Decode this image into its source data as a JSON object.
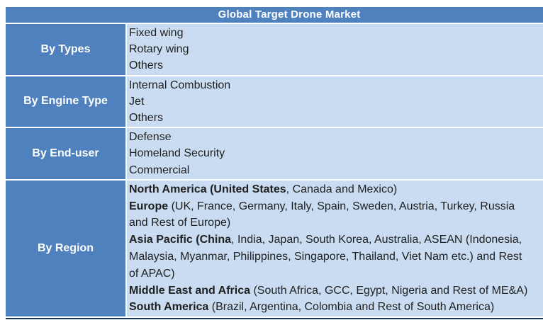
{
  "title": "Global Target Drone Market",
  "colors": {
    "pageBg": "#FFFFFF",
    "headerBg": "#4E81BD",
    "labelBg": "#4E81BD",
    "headerText": "#FFFFFF",
    "cellBg": "#C9DCF2",
    "itemText": "#1F1F1F",
    "bottomBorder": "#17375E"
  },
  "rows": [
    {
      "label": "By Types",
      "items": [
        "Fixed wing",
        "Rotary wing",
        "Others"
      ]
    },
    {
      "label": "By Engine Type",
      "items": [
        "Internal Combustion",
        "Jet",
        "Others"
      ]
    },
    {
      "label": "By End-user",
      "items": [
        "Defense",
        "Homeland Security",
        "Commercial"
      ]
    },
    {
      "label": "By Region",
      "lines": [
        {
          "bold": "North America (United States",
          "rest": ", Canada and Mexico)"
        },
        {
          "bold": "Europe",
          "rest": " (UK, France, Germany, Italy, Spain, Sweden, Austria, Turkey, Russia"
        },
        {
          "bold": "",
          "rest": "and Rest of Europe)"
        },
        {
          "bold": "Asia Pacific (China",
          "rest": ", India, Japan, South Korea, Australia, ASEAN (Indonesia,"
        },
        {
          "bold": "",
          "rest": "Malaysia, Myanmar, Philippines, Singapore, Thailand, Viet Nam etc.) and Rest"
        },
        {
          "bold": "",
          "rest": "of APAC)"
        },
        {
          "bold": "Middle East and Africa",
          "rest": " (South Africa, GCC, Egypt, Nigeria and Rest of ME&A)"
        },
        {
          "bold": "South America",
          "rest": " (Brazil, Argentina, Colombia and Rest of South America)"
        }
      ]
    }
  ]
}
